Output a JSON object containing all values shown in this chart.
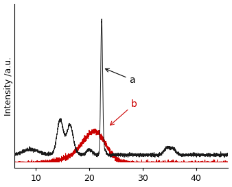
{
  "title": "",
  "xlabel": "",
  "ylabel": "Intensity /a.u.",
  "xlim": [
    6,
    46
  ],
  "x_ticks": [
    10,
    20,
    30,
    40
  ],
  "color_a": "#1a1a1a",
  "color_b": "#cc0000",
  "label_a": "a",
  "label_b": "b",
  "noise_scale_a": 0.006,
  "noise_scale_b": 0.01,
  "seed": 42
}
